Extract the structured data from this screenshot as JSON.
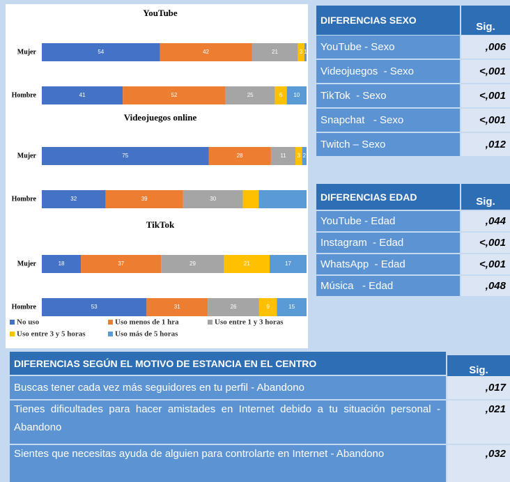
{
  "chart_data": [
    {
      "type": "bar",
      "stacked": true,
      "title": "YouTube",
      "categories": [
        "Mujer",
        "Hombre"
      ],
      "series": [
        {
          "name": "No uso",
          "color": "#4472c4",
          "values": [
            54,
            41
          ]
        },
        {
          "name": "Uso menos de 1 hra",
          "color": "#ed7d31",
          "values": [
            42,
            52
          ]
        },
        {
          "name": "Uso entre 1 y 3 horas",
          "color": "#a5a5a5",
          "values": [
            21,
            25
          ]
        },
        {
          "name": "Uso entre 3 y 5 horas",
          "color": "#ffc000",
          "values": [
            3,
            6
          ]
        },
        {
          "name": "Uso más de 5 horas",
          "color": "#5b9bd5",
          "values": [
            1,
            10
          ]
        }
      ]
    },
    {
      "type": "bar",
      "stacked": true,
      "title": "Videojuegos online",
      "categories": [
        "Mujer",
        "Hombre"
      ],
      "series": [
        {
          "name": "No uso",
          "color": "#4472c4",
          "values": [
            75,
            32
          ]
        },
        {
          "name": "Uso menos de 1 hra",
          "color": "#ed7d31",
          "values": [
            28,
            39
          ]
        },
        {
          "name": "Uso entre 1 y 3 horas",
          "color": "#a5a5a5",
          "values": [
            11,
            30
          ]
        },
        {
          "name": "Uso entre 3 y 5 horas",
          "color": "#ffc000",
          "values": [
            3,
            8
          ],
          "value_labels": [
            "3",
            null
          ]
        },
        {
          "name": "Uso más de 5 horas",
          "color": "#5b9bd5",
          "values": [
            2,
            24
          ],
          "value_labels": [
            "2",
            null
          ]
        }
      ]
    },
    {
      "type": "bar",
      "stacked": true,
      "title": "TikTok",
      "categories": [
        "Mujer",
        "Hombre"
      ],
      "series": [
        {
          "name": "No uso",
          "color": "#4472c4",
          "values": [
            18,
            53
          ]
        },
        {
          "name": "Uso menos de 1 hra",
          "color": "#ed7d31",
          "values": [
            37,
            31
          ]
        },
        {
          "name": "Uso entre 1 y 3 horas",
          "color": "#a5a5a5",
          "values": [
            29,
            26
          ]
        },
        {
          "name": "Uso entre 3 y 5 horas",
          "color": "#ffc000",
          "values": [
            21,
            9
          ]
        },
        {
          "name": "Uso más de 5 horas",
          "color": "#5b9bd5",
          "values": [
            17,
            15
          ]
        }
      ]
    }
  ],
  "tables": [
    {
      "header": "DIFERENCIAS SEXO",
      "sig_header": "Sig.",
      "rows": [
        [
          "YouTube - Sexo",
          ",006"
        ],
        [
          "Videojuegos  - Sexo",
          "<,001"
        ],
        [
          "TikTok  - Sexo",
          "<,001"
        ],
        [
          "Snapchat   - Sexo",
          "<,001"
        ],
        [
          "Twitch – Sexo",
          ",012"
        ]
      ]
    },
    {
      "header": "DIFERENCIAS EDAD",
      "sig_header": "Sig.",
      "rows": [
        [
          "YouTube - Edad",
          ",044"
        ],
        [
          "Instagram  - Edad",
          "<,001"
        ],
        [
          "WhatsApp  - Edad",
          "<,001"
        ],
        [
          "Música   - Edad",
          ",048"
        ]
      ]
    },
    {
      "header": "DIFERENCIAS SEGÚN EL MOTIVO DE ESTANCIA EN EL CENTRO",
      "sig_header": "Sig.",
      "rows": [
        [
          "Buscas tener cada vez más seguidores en tu perfil - Abandono",
          ",017"
        ],
        [
          "Tienes dificultades para hacer amistades en Internet debido a tu situación personal - Abandono",
          ",021"
        ],
        [
          "Sientes que necesitas ayuda de alguien para controlarte en Internet - Abandono",
          ",032"
        ]
      ]
    }
  ]
}
